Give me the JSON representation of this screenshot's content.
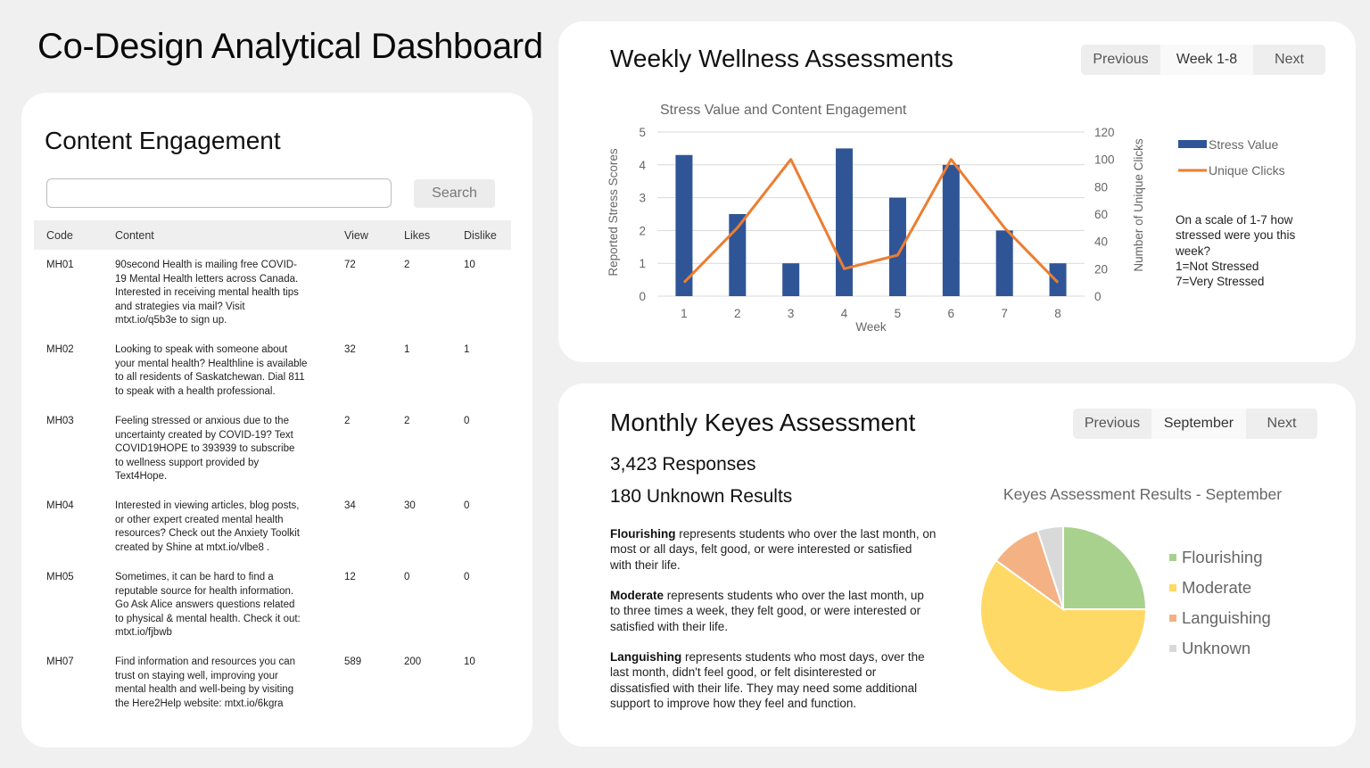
{
  "page_title": "Co-Design Analytical Dashboard",
  "content_engagement": {
    "title": "Content Engagement",
    "search_value": "",
    "search_button": "Search",
    "columns": [
      "Code",
      "Content",
      "View",
      "Likes",
      "Dislike"
    ],
    "rows": [
      {
        "code": "MH01",
        "content": [
          "90second Health is mailing free COVID-",
          "19 Mental Health letters across Canada.",
          "Interested in receiving mental health tips",
          "and strategies via mail? Visit",
          "mtxt.io/q5b3e to sign up."
        ],
        "view": "72",
        "likes": "2",
        "dislike": "10"
      },
      {
        "code": "MH02",
        "content": [
          "Looking to speak with someone about",
          "your mental health? Healthline is available",
          "to all residents of Saskatchewan. Dial 811",
          "to speak with a health professional."
        ],
        "view": "32",
        "likes": "1",
        "dislike": "1"
      },
      {
        "code": "MH03",
        "content": [
          "Feeling stressed or anxious due to the",
          "uncertainty created by COVID-19? Text",
          "COVID19HOPE to 393939 to subscribe",
          "to wellness support provided by",
          "Text4Hope."
        ],
        "view": "2",
        "likes": "2",
        "dislike": "0"
      },
      {
        "code": "MH04",
        "content": [
          "Interested in viewing articles, blog posts,",
          "or other expert created mental health",
          "resources? Check out the Anxiety Toolkit",
          "created by Shine at mtxt.io/vlbe8 ."
        ],
        "view": "34",
        "likes": "30",
        "dislike": "0"
      },
      {
        "code": "MH05",
        "content": [
          "Sometimes, it can be hard to find a",
          "reputable source for health information.",
          "Go Ask Alice  answers questions related",
          "to physical & mental health. Check it out:",
          "mtxt.io/fjbwb"
        ],
        "view": "12",
        "likes": "0",
        "dislike": "0"
      },
      {
        "code": "MH07",
        "content": [
          "Find information and resources you can",
          "trust on staying well, improving your",
          "mental health and well-being by visiting",
          "the Here2Help website: mtxt.io/6kgra"
        ],
        "view": "589",
        "likes": "200",
        "dislike": "10"
      }
    ]
  },
  "weekly": {
    "title": "Weekly Wellness Assessments",
    "pager": {
      "prev": "Previous",
      "current": "Week 1-8",
      "next": "Next"
    },
    "note": [
      "On a scale of 1-7 how",
      "stressed were you this",
      "week?",
      "1=Not Stressed",
      "7=Very Stressed"
    ]
  },
  "monthly": {
    "title": "Monthly Keyes Assessment",
    "pager": {
      "prev": "Previous",
      "current": "September",
      "next": "Next"
    },
    "responses": "3,423 Responses",
    "unknown": "180 Unknown Results",
    "descriptions": [
      {
        "term": "Flourishing",
        "text": " represents students who over the last month, on most or all days, felt good, or were interested or satisfied with their life."
      },
      {
        "term": "Moderate",
        "text": " represents students who over the last month, up to three times a week, they felt good, or were interested or satisfied with their life."
      },
      {
        "term": "Languishing",
        "text": " represents students who most days, over the last month, didn't feel good, or felt disinterested or dissatisfied with their life. They may need some additional support to improve how they feel and function."
      }
    ]
  },
  "chart_data": [
    {
      "type": "bar",
      "title": "Stress Value and Content Engagement",
      "xlabel": "Week",
      "ylabel": "Reported Stress Scores",
      "y2label": "Number of Unique Clicks",
      "categories": [
        "1",
        "2",
        "3",
        "4",
        "5",
        "6",
        "7",
        "8"
      ],
      "ylim": [
        0,
        5
      ],
      "y2lim": [
        0,
        120
      ],
      "yticks": [
        "0",
        "1",
        "2",
        "3",
        "4",
        "5"
      ],
      "y2ticks": [
        "0",
        "20",
        "40",
        "60",
        "80",
        "100",
        "120"
      ],
      "series": [
        {
          "name": "Stress Value",
          "type": "bar",
          "axis": "left",
          "values": [
            4.3,
            2.5,
            1,
            4.5,
            3,
            4,
            2,
            1
          ],
          "color": "#2f5597"
        },
        {
          "name": "Unique Clicks",
          "type": "line",
          "axis": "right",
          "values": [
            10,
            50,
            100,
            20,
            30,
            100,
            50,
            10
          ],
          "color": "#ed7d31"
        }
      ],
      "grid": true,
      "legend": "right"
    },
    {
      "type": "pie",
      "title": "Keyes Assessment Results - September",
      "labels": [
        "Flourishing",
        "Moderate",
        "Languishing",
        "Unknown"
      ],
      "values": [
        25,
        60,
        10,
        5
      ],
      "colors": [
        "#a9d18e",
        "#ffd966",
        "#f4b183",
        "#d9d9d9"
      ],
      "legend": "right"
    }
  ]
}
